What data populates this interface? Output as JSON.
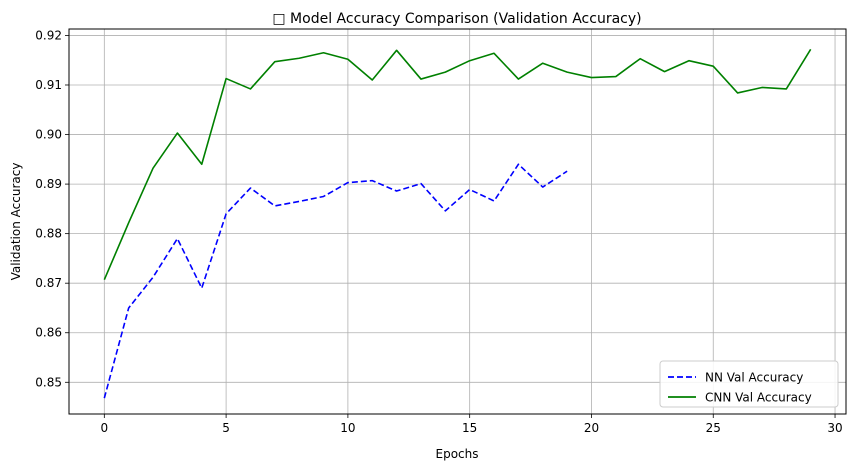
{
  "chart_data": {
    "type": "line",
    "title": "□ Model Accuracy Comparison (Validation Accuracy)",
    "xlabel": "Epochs",
    "ylabel": "Validation Accuracy",
    "xlim": [
      -1.45,
      30.45
    ],
    "ylim": [
      0.8436,
      0.9213
    ],
    "xticks": [
      0,
      5,
      10,
      15,
      20,
      25,
      30
    ],
    "yticks": [
      0.85,
      0.86,
      0.87,
      0.88,
      0.89,
      0.9,
      0.91,
      0.92
    ],
    "ytick_labels": [
      "0.85",
      "0.86",
      "0.87",
      "0.88",
      "0.89",
      "0.90",
      "0.91",
      "0.92"
    ],
    "grid": true,
    "legend_position": "bottom-right",
    "series": [
      {
        "name": "NN Val Accuracy",
        "color": "#0000ff",
        "style": "dashed",
        "x": [
          0,
          1,
          2,
          3,
          4,
          5,
          6,
          7,
          8,
          9,
          10,
          11,
          12,
          13,
          14,
          15,
          16,
          17,
          18,
          19
        ],
        "values": [
          0.8468,
          0.865,
          0.8712,
          0.879,
          0.869,
          0.884,
          0.8892,
          0.8856,
          0.8865,
          0.8875,
          0.8903,
          0.8907,
          0.8886,
          0.8901,
          0.8846,
          0.8889,
          0.8866,
          0.894,
          0.8894,
          0.8926
        ]
      },
      {
        "name": "CNN Val Accuracy",
        "color": "#008000",
        "style": "solid",
        "x": [
          0,
          1,
          2,
          3,
          4,
          5,
          6,
          7,
          8,
          9,
          10,
          11,
          12,
          13,
          14,
          15,
          16,
          17,
          18,
          19,
          20,
          21,
          22,
          23,
          24,
          25,
          26,
          27,
          28,
          29
        ],
        "values": [
          0.8707,
          0.8822,
          0.8932,
          0.9003,
          0.894,
          0.9113,
          0.9092,
          0.9147,
          0.9154,
          0.9165,
          0.9152,
          0.911,
          0.917,
          0.9112,
          0.9126,
          0.9149,
          0.9164,
          0.9112,
          0.9144,
          0.9126,
          0.9115,
          0.9117,
          0.9153,
          0.9127,
          0.9149,
          0.9138,
          0.9084,
          0.9095,
          0.9092,
          0.9172
        ]
      }
    ]
  }
}
